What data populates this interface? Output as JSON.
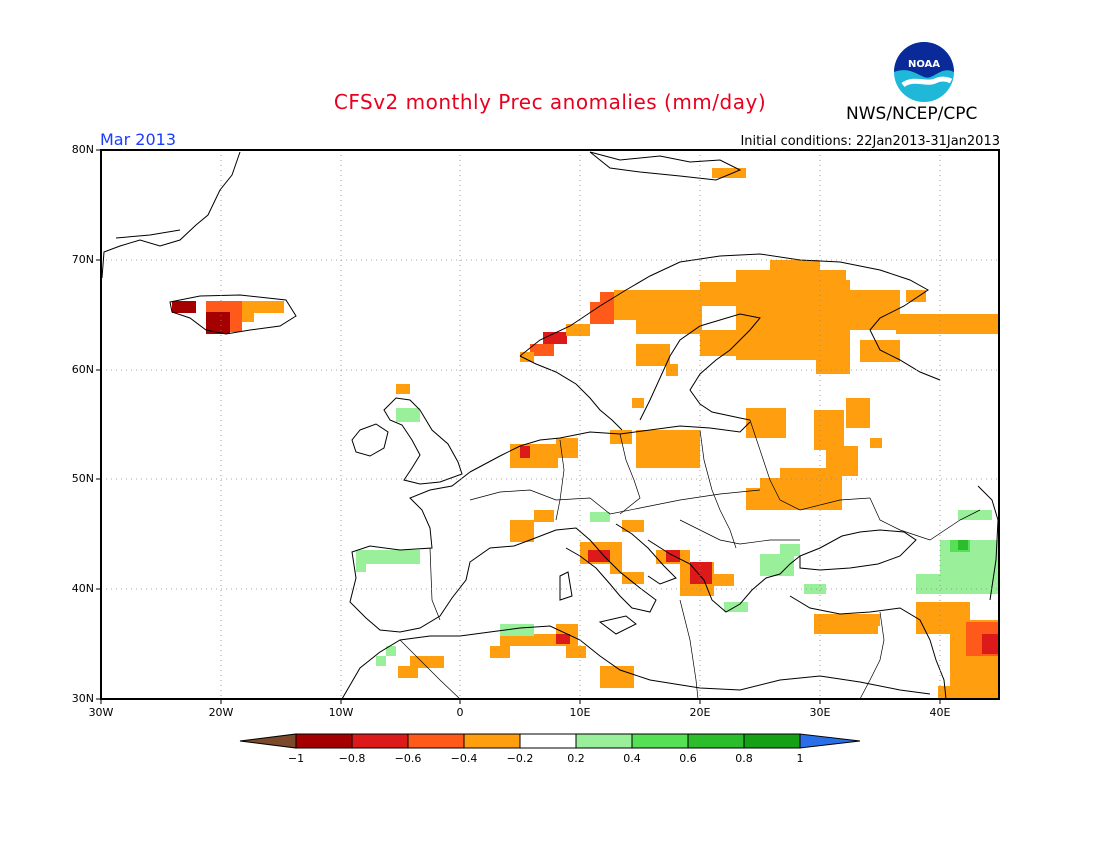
{
  "header": {
    "title": "CFSv2 monthly Prec anomalies (mm/day)",
    "agency": "NWS/NCEP/CPC",
    "month": "Mar 2013",
    "initial_conditions": "Initial conditions: 22Jan2013-31Jan2013",
    "logo_text": "NOAA"
  },
  "axes": {
    "lat_labels": [
      "80N",
      "70N",
      "60N",
      "50N",
      "40N",
      "30N"
    ],
    "lon_labels": [
      "30W",
      "20W",
      "10W",
      "0",
      "10E",
      "20E",
      "30E",
      "40E"
    ]
  },
  "colorbar": {
    "labels": [
      "−1",
      "−0.8",
      "−0.6",
      "−0.4",
      "−0.2",
      "0.2",
      "0.4",
      "0.6",
      "0.8",
      "1"
    ],
    "colors": [
      "#7a4a2a",
      "#a50000",
      "#dd1a1a",
      "#ff5a1a",
      "#ff9f10",
      "#ffffff",
      "#9af09a",
      "#55e055",
      "#2bbd2b",
      "#16a016",
      "#2a6ee8"
    ]
  },
  "map_data": {
    "region": "Europe",
    "lon_range": [
      -30,
      45
    ],
    "lat_range": [
      30,
      80
    ],
    "grid": true
  }
}
